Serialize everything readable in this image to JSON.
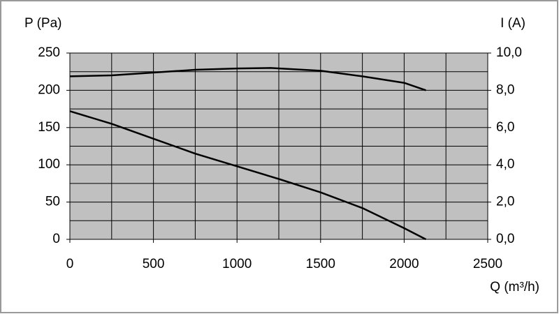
{
  "chart_data": {
    "type": "line",
    "y_label": "P (Pa)",
    "y2_label": "I (A)",
    "x_label": "Q (m³/h)",
    "series": [
      {
        "color": "#000000",
        "axis": "y2",
        "x": [
          0,
          250,
          500,
          750,
          1000,
          1200,
          1500,
          1750,
          2000,
          2130
        ],
        "values": [
          8.75,
          8.8,
          8.95,
          9.1,
          9.17,
          9.2,
          9.05,
          8.75,
          8.4,
          8.0
        ]
      },
      {
        "color": "#000000",
        "x": [
          0,
          250,
          500,
          750,
          1000,
          1250,
          1500,
          1750,
          2000,
          2130
        ],
        "values": [
          172,
          155,
          135,
          115,
          98,
          81,
          63,
          42,
          15,
          0
        ]
      }
    ],
    "xlim": [
      0,
      2500
    ],
    "xticks": [
      0,
      500,
      1000,
      1500,
      2000,
      2500
    ],
    "x_minor_ticks": [
      250,
      750,
      1250,
      1750,
      2250
    ],
    "ylim": [
      0,
      250
    ],
    "yticks": [
      0,
      50,
      100,
      150,
      200,
      250
    ],
    "y_minor_ticks": [
      25,
      75,
      125,
      175,
      225
    ],
    "y2lim": [
      0,
      10
    ],
    "y2ticks": [
      {
        "value": 0,
        "label": "0,0"
      },
      {
        "value": 2,
        "label": "2,0"
      },
      {
        "value": 4,
        "label": "4,0"
      },
      {
        "value": 6,
        "label": "6,0"
      },
      {
        "value": 8,
        "label": "8,0"
      },
      {
        "value": 10,
        "label": "10,0"
      }
    ],
    "grid": true,
    "plot_color": "#c0c0c0"
  }
}
